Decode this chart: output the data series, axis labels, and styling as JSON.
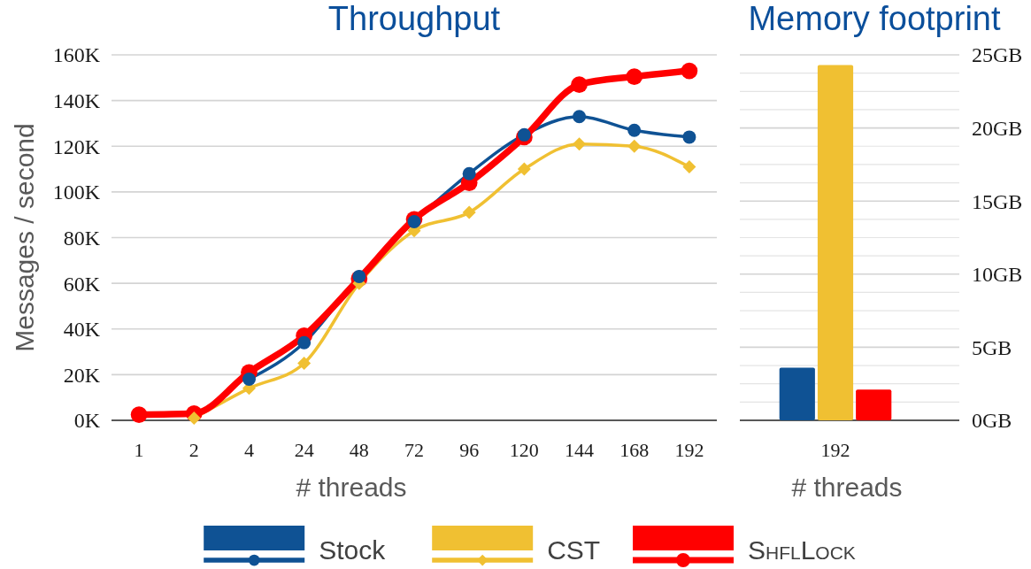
{
  "chart_data": [
    {
      "type": "line",
      "title": "Throughput",
      "xlabel": "# threads",
      "ylabel": "Messages / second",
      "categories": [
        "1",
        "2",
        "4",
        "24",
        "48",
        "72",
        "96",
        "120",
        "144",
        "168",
        "192"
      ],
      "ylim": [
        0,
        160000
      ],
      "yticks": [
        {
          "value": 0,
          "label": "0K"
        },
        {
          "value": 20000,
          "label": "20K"
        },
        {
          "value": 40000,
          "label": "40K"
        },
        {
          "value": 60000,
          "label": "60K"
        },
        {
          "value": 80000,
          "label": "80K"
        },
        {
          "value": 100000,
          "label": "100K"
        },
        {
          "value": 120000,
          "label": "120K"
        },
        {
          "value": 140000,
          "label": "140K"
        },
        {
          "value": 160000,
          "label": "160K"
        }
      ],
      "grid": "y",
      "legend": "bottom",
      "series": [
        {
          "name": "Stock",
          "color": "#0f5294",
          "marker": "circle",
          "values": [
            null,
            null,
            18000,
            34000,
            63000,
            87000,
            108000,
            125000,
            133000,
            127000,
            124000
          ]
        },
        {
          "name": "CST",
          "color": "#f0c032",
          "marker": "diamond",
          "values": [
            null,
            1000,
            14000,
            25000,
            60000,
            83000,
            91000,
            110000,
            121000,
            120000,
            111000
          ]
        },
        {
          "name": "ShflLock",
          "color": "#ff0000",
          "marker": "circle",
          "values": [
            2500,
            3000,
            21000,
            37000,
            62000,
            88000,
            104000,
            124000,
            147000,
            150500,
            153000
          ]
        }
      ]
    },
    {
      "type": "bar",
      "title": "Memory footprint",
      "xlabel": "# threads",
      "categories": [
        "192"
      ],
      "ylim": [
        0,
        25
      ],
      "yticks": [
        {
          "value": 0,
          "label": "0GB"
        },
        {
          "value": 1.25,
          "label": null
        },
        {
          "value": 2.5,
          "label": null
        },
        {
          "value": 3.75,
          "label": null
        },
        {
          "value": 5,
          "label": "5GB"
        },
        {
          "value": 6.25,
          "label": null
        },
        {
          "value": 7.5,
          "label": null
        },
        {
          "value": 8.75,
          "label": null
        },
        {
          "value": 10,
          "label": "10GB"
        },
        {
          "value": 11.25,
          "label": null
        },
        {
          "value": 12.5,
          "label": null
        },
        {
          "value": 13.75,
          "label": null
        },
        {
          "value": 15,
          "label": "15GB"
        },
        {
          "value": 16.25,
          "label": null
        },
        {
          "value": 17.5,
          "label": null
        },
        {
          "value": 18.75,
          "label": null
        },
        {
          "value": 20,
          "label": "20GB"
        },
        {
          "value": 21.25,
          "label": null
        },
        {
          "value": 22.5,
          "label": null
        },
        {
          "value": 23.75,
          "label": null
        },
        {
          "value": 25,
          "label": "25GB"
        }
      ],
      "grid": "y",
      "series": [
        {
          "color": "#0f5294",
          "values": [
            3.6
          ]
        },
        {
          "color": "#f0c032",
          "values": [
            24.3
          ]
        },
        {
          "color": "#ff0000",
          "values": [
            2.1
          ]
        }
      ]
    }
  ]
}
